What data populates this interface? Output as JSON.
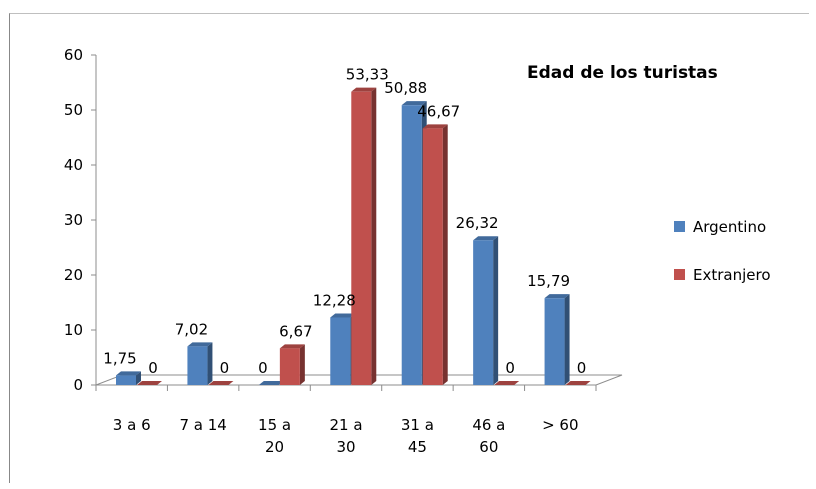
{
  "chart_data": {
    "type": "bar",
    "title": "Edad de los turistas",
    "categories": [
      [
        "3 a 6"
      ],
      [
        "7 a 14"
      ],
      [
        "15 a",
        "20"
      ],
      [
        "21 a",
        "30"
      ],
      [
        "31 a",
        "45"
      ],
      [
        "46 a",
        "60"
      ],
      [
        "> 60"
      ]
    ],
    "series": [
      {
        "name": "Argentino",
        "color": "#4F81BD",
        "values": [
          1.75,
          7.02,
          0,
          12.28,
          50.88,
          26.32,
          15.79
        ],
        "labels": [
          "1,75",
          "7,02",
          "0",
          "12,28",
          "50,88",
          "26,32",
          "15,79"
        ]
      },
      {
        "name": "Extranjero",
        "color": "#C0504D",
        "values": [
          0,
          0,
          6.67,
          53.33,
          46.67,
          0,
          0
        ],
        "labels": [
          "0",
          "0",
          "6,67",
          "53,33",
          "46,67",
          "0",
          "0"
        ]
      }
    ],
    "ylim": [
      0,
      60
    ],
    "yticks": [
      0,
      10,
      20,
      30,
      40,
      50,
      60
    ],
    "grid": false,
    "legend_position": "right",
    "style": "3d-clustered-column"
  }
}
